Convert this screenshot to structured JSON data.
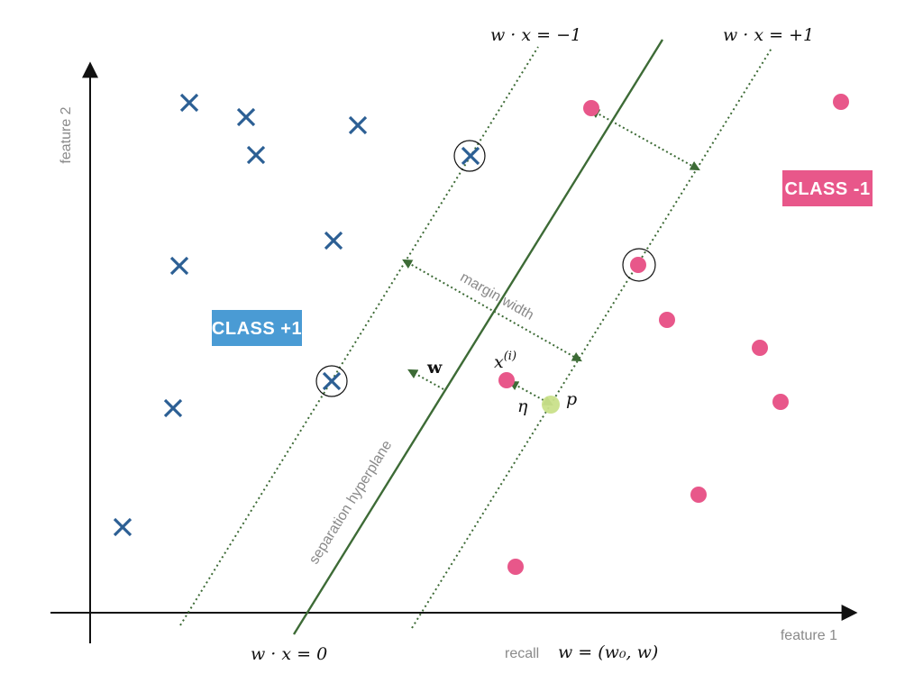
{
  "axes": {
    "x_title": "feature 1",
    "y_title": "feature 2"
  },
  "labels": {
    "class_pos": "CLASS +1",
    "class_neg": "CLASS -1",
    "margin": "margin width",
    "hyperplane": "separation hyperplane",
    "eq_neg1": "w · x = −1",
    "eq_pos1": "w · x = +1",
    "eq_zero": "w · x = 0",
    "recall_word": "recall",
    "recall_formula": "w = (w₀, w)",
    "w_vector": "w",
    "xi_base": "x",
    "xi_sup": "(i)",
    "eta": "η",
    "p": "p"
  },
  "colors": {
    "cross": "#2c5f94",
    "dot": "#e8578a",
    "badge_pos": "#4a9bd4",
    "badge_neg": "#e8578a",
    "line": "#3d6b36",
    "projection": "#c9e08a",
    "axis": "#111111",
    "text_gray": "#8a8a8a"
  },
  "icons": {
    "class_pos_marker": "cross-icon",
    "class_neg_marker": "dot-icon",
    "support_vector_marker": "circle-outline-icon"
  }
}
